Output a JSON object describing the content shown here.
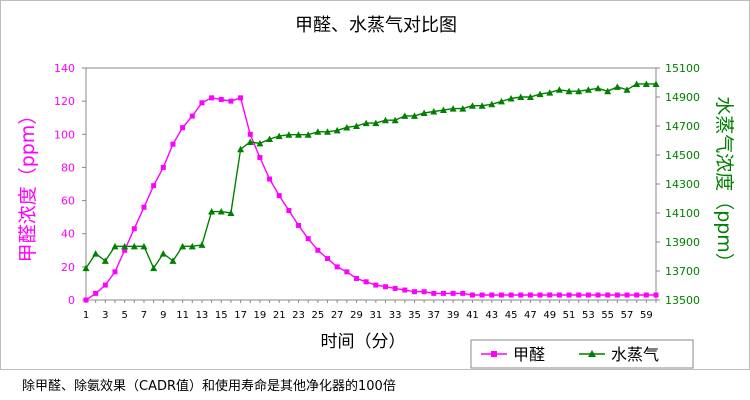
{
  "chart_data": {
    "type": "line",
    "title": "甲醛、水蒸气对比图",
    "xlabel": "时间（分）",
    "ylabel_left": "甲醛浓度（ppm）",
    "ylabel_right": "水蒸气浓度（ppm）",
    "ylim_left": [
      0,
      140
    ],
    "ylim_right": [
      13500,
      15100
    ],
    "yticks_left": [
      0,
      20,
      40,
      60,
      80,
      100,
      120,
      140
    ],
    "yticks_right": [
      13500,
      13700,
      13900,
      14100,
      14300,
      14500,
      14700,
      14900,
      15100
    ],
    "xlim": [
      1,
      60
    ],
    "xticks": [
      1,
      3,
      5,
      7,
      9,
      11,
      13,
      15,
      17,
      19,
      21,
      23,
      25,
      27,
      29,
      31,
      33,
      35,
      37,
      39,
      41,
      43,
      45,
      47,
      49,
      51,
      53,
      55,
      57,
      59
    ],
    "grid": false,
    "legend_position": "bottom-right",
    "x": [
      1,
      2,
      3,
      4,
      5,
      6,
      7,
      8,
      9,
      10,
      11,
      12,
      13,
      14,
      15,
      16,
      17,
      18,
      19,
      20,
      21,
      22,
      23,
      24,
      25,
      26,
      27,
      28,
      29,
      30,
      31,
      32,
      33,
      34,
      35,
      36,
      37,
      38,
      39,
      40,
      41,
      42,
      43,
      44,
      45,
      46,
      47,
      48,
      49,
      50,
      51,
      52,
      53,
      54,
      55,
      56,
      57,
      58,
      59,
      60
    ],
    "series": [
      {
        "name": "甲醛",
        "axis": "left",
        "color": "#ff00ff",
        "marker": "square",
        "values": [
          0,
          4,
          9,
          17,
          30,
          43,
          56,
          69,
          80,
          94,
          104,
          111,
          119,
          122,
          121,
          120,
          122,
          100,
          86,
          73,
          63,
          54,
          45,
          37,
          30,
          25,
          20,
          17,
          13,
          11,
          9,
          8,
          7,
          6,
          5,
          5,
          4,
          4,
          4,
          4,
          3,
          3,
          3,
          3,
          3,
          3,
          3,
          3,
          3,
          3,
          3,
          3,
          3,
          3,
          3,
          3,
          3,
          3,
          3,
          3
        ]
      },
      {
        "name": "水蒸气",
        "axis": "right",
        "color": "#008000",
        "marker": "triangle",
        "values": [
          13720,
          13820,
          13770,
          13870,
          13870,
          13870,
          13870,
          13720,
          13820,
          13770,
          13870,
          13870,
          13880,
          14110,
          14110,
          14100,
          14540,
          14590,
          14580,
          14610,
          14630,
          14640,
          14640,
          14640,
          14660,
          14660,
          14670,
          14690,
          14700,
          14720,
          14720,
          14740,
          14740,
          14770,
          14770,
          14790,
          14800,
          14810,
          14820,
          14820,
          14840,
          14840,
          14850,
          14870,
          14890,
          14900,
          14900,
          14920,
          14930,
          14950,
          14940,
          14940,
          14950,
          14960,
          14940,
          14970,
          14950,
          14990,
          14990,
          14990
        ]
      }
    ]
  },
  "caption": "除甲醛、除氨效果（CADR值）和使用寿命是其他净化器的100倍"
}
